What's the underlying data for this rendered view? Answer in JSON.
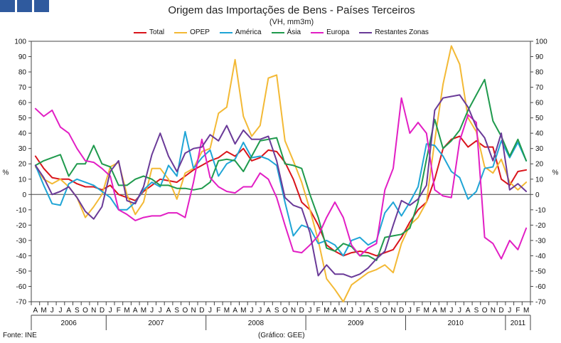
{
  "header": {
    "title": "Origem das Importações de Bens - Países Terceiros",
    "subtitle": "(VH, mm3m)"
  },
  "footer": {
    "source": "Fonte: INE",
    "credit": "(Gráfico: GEE)"
  },
  "chart_data": {
    "type": "line",
    "ylabel_left": "%",
    "ylabel_right": "%",
    "ylim": [
      -70,
      100
    ],
    "yticks": [
      -70,
      -60,
      -50,
      -40,
      -30,
      -20,
      -10,
      0,
      10,
      20,
      30,
      40,
      50,
      60,
      70,
      80,
      90,
      100
    ],
    "grid": false,
    "legend_position": "top",
    "x": [
      "2006-04",
      "2006-05",
      "2006-06",
      "2006-07",
      "2006-08",
      "2006-09",
      "2006-10",
      "2006-11",
      "2006-12",
      "2007-01",
      "2007-02",
      "2007-03",
      "2007-04",
      "2007-05",
      "2007-06",
      "2007-07",
      "2007-08",
      "2007-09",
      "2007-10",
      "2007-11",
      "2007-12",
      "2008-01",
      "2008-02",
      "2008-03",
      "2008-04",
      "2008-05",
      "2008-06",
      "2008-07",
      "2008-08",
      "2008-09",
      "2008-10",
      "2008-11",
      "2008-12",
      "2009-01",
      "2009-02",
      "2009-03",
      "2009-04",
      "2009-05",
      "2009-06",
      "2009-07",
      "2009-08",
      "2009-09",
      "2009-10",
      "2009-11",
      "2009-12",
      "2010-01",
      "2010-02",
      "2010-03",
      "2010-04",
      "2010-05",
      "2010-06",
      "2010-07",
      "2010-08",
      "2010-09",
      "2010-10",
      "2010-11",
      "2010-12",
      "2011-01",
      "2011-02",
      "2011-03"
    ],
    "x_tick_labels": [
      "A",
      "M",
      "J",
      "J",
      "A",
      "S",
      "O",
      "N",
      "D",
      "J",
      "F",
      "M",
      "A",
      "M",
      "J",
      "J",
      "A",
      "S",
      "O",
      "N",
      "D",
      "J",
      "F",
      "M",
      "A",
      "M",
      "J",
      "J",
      "A",
      "S",
      "O",
      "N",
      "D",
      "J",
      "F",
      "M",
      "A",
      "M",
      "J",
      "J",
      "A",
      "S",
      "O",
      "N",
      "D",
      "J",
      "F",
      "M",
      "A",
      "M",
      "J",
      "J",
      "A",
      "S",
      "O",
      "N",
      "D",
      "J",
      "F",
      "M"
    ],
    "year_groups": [
      {
        "label": "2006",
        "start": 0,
        "end": 8
      },
      {
        "label": "2007",
        "start": 9,
        "end": 20
      },
      {
        "label": "2008",
        "start": 21,
        "end": 32
      },
      {
        "label": "2009",
        "start": 33,
        "end": 44
      },
      {
        "label": "2010",
        "start": 45,
        "end": 56
      },
      {
        "label": "2011",
        "start": 57,
        "end": 59
      }
    ],
    "series": [
      {
        "name": "Total",
        "color": "#d9141b",
        "values": [
          25,
          17,
          11,
          10,
          10,
          7,
          5,
          5,
          3,
          6,
          0,
          -2,
          -4,
          2,
          6,
          10,
          9,
          8,
          12,
          16,
          19,
          22,
          24,
          28,
          25,
          30,
          22,
          24,
          29,
          28,
          21,
          10,
          -5,
          -10,
          -20,
          -33,
          -37,
          -40,
          -38,
          -37,
          -38,
          -40,
          -38,
          -36,
          -28,
          -18,
          -10,
          -5,
          10,
          30,
          36,
          38,
          31,
          35,
          31,
          31,
          10,
          6,
          15,
          16
        ]
      },
      {
        "name": "OPEP",
        "color": "#f3b935",
        "values": [
          18,
          10,
          7,
          10,
          5,
          -2,
          -15,
          -8,
          0,
          18,
          21,
          0,
          -13,
          -5,
          17,
          17,
          10,
          -3,
          14,
          17,
          28,
          30,
          53,
          57,
          88,
          51,
          38,
          45,
          76,
          78,
          35,
          22,
          8,
          -10,
          -30,
          -55,
          -62,
          -70,
          -59,
          -55,
          -51,
          -49,
          -46,
          -51,
          -32,
          -20,
          -15,
          -5,
          35,
          72,
          97,
          85,
          50,
          41,
          18,
          14,
          23,
          8,
          3,
          8
        ]
      },
      {
        "name": "América",
        "color": "#1fa5d6",
        "values": [
          19,
          6,
          -6,
          -7,
          7,
          10,
          8,
          6,
          2,
          -2,
          -10,
          -10,
          -5,
          3,
          8,
          5,
          19,
          12,
          41,
          17,
          24,
          29,
          12,
          20,
          23,
          34,
          24,
          25,
          23,
          19,
          -5,
          -27,
          -20,
          -22,
          -32,
          -30,
          -33,
          -40,
          -30,
          -28,
          -33,
          -30,
          -12,
          -5,
          -14,
          -5,
          5,
          33,
          32,
          25,
          15,
          11,
          -3,
          2,
          17,
          18,
          35,
          24,
          34,
          22
        ]
      },
      {
        "name": "Ásia",
        "color": "#1f9a4d",
        "values": [
          19,
          22,
          24,
          26,
          12,
          20,
          20,
          32,
          20,
          18,
          6,
          6,
          10,
          12,
          10,
          6,
          6,
          4,
          4,
          3,
          4,
          8,
          22,
          23,
          22,
          15,
          25,
          35,
          36,
          37,
          20,
          19,
          17,
          0,
          -15,
          -35,
          -37,
          -32,
          -34,
          -40,
          -40,
          -43,
          -28,
          -27,
          -26,
          -22,
          -5,
          23,
          49,
          30,
          35,
          42,
          55,
          65,
          75,
          48,
          38,
          25,
          36,
          22
        ]
      },
      {
        "name": "Europa",
        "color": "#e21ec4",
        "values": [
          56,
          51,
          55,
          44,
          40,
          30,
          22,
          21,
          17,
          12,
          -10,
          -13,
          -17,
          -15,
          -14,
          -14,
          -12,
          -12,
          -15,
          8,
          36,
          11,
          5,
          2,
          1,
          5,
          5,
          14,
          10,
          -2,
          -20,
          -37,
          -38,
          -33,
          -27,
          -15,
          -5,
          -15,
          -33,
          -40,
          -35,
          -32,
          3,
          17,
          63,
          40,
          47,
          40,
          3,
          -1,
          -2,
          35,
          52,
          47,
          -28,
          -32,
          -42,
          -30,
          -36,
          -22
        ]
      },
      {
        "name": "Restantes Zonas",
        "color": "#6a3a98",
        "values": [
          19,
          11,
          0,
          2,
          5,
          -2,
          -11,
          -16,
          -8,
          15,
          22,
          -4,
          -6,
          5,
          26,
          40,
          25,
          15,
          27,
          30,
          31,
          39,
          35,
          45,
          33,
          42,
          36,
          36,
          38,
          22,
          -2,
          -7,
          -9,
          -25,
          -53,
          -46,
          -52,
          -52,
          -54,
          -52,
          -48,
          -42,
          -37,
          -20,
          -4,
          -7,
          -3,
          6,
          55,
          63,
          64,
          65,
          57,
          44,
          37,
          22,
          40,
          3,
          7,
          2
        ]
      }
    ]
  }
}
